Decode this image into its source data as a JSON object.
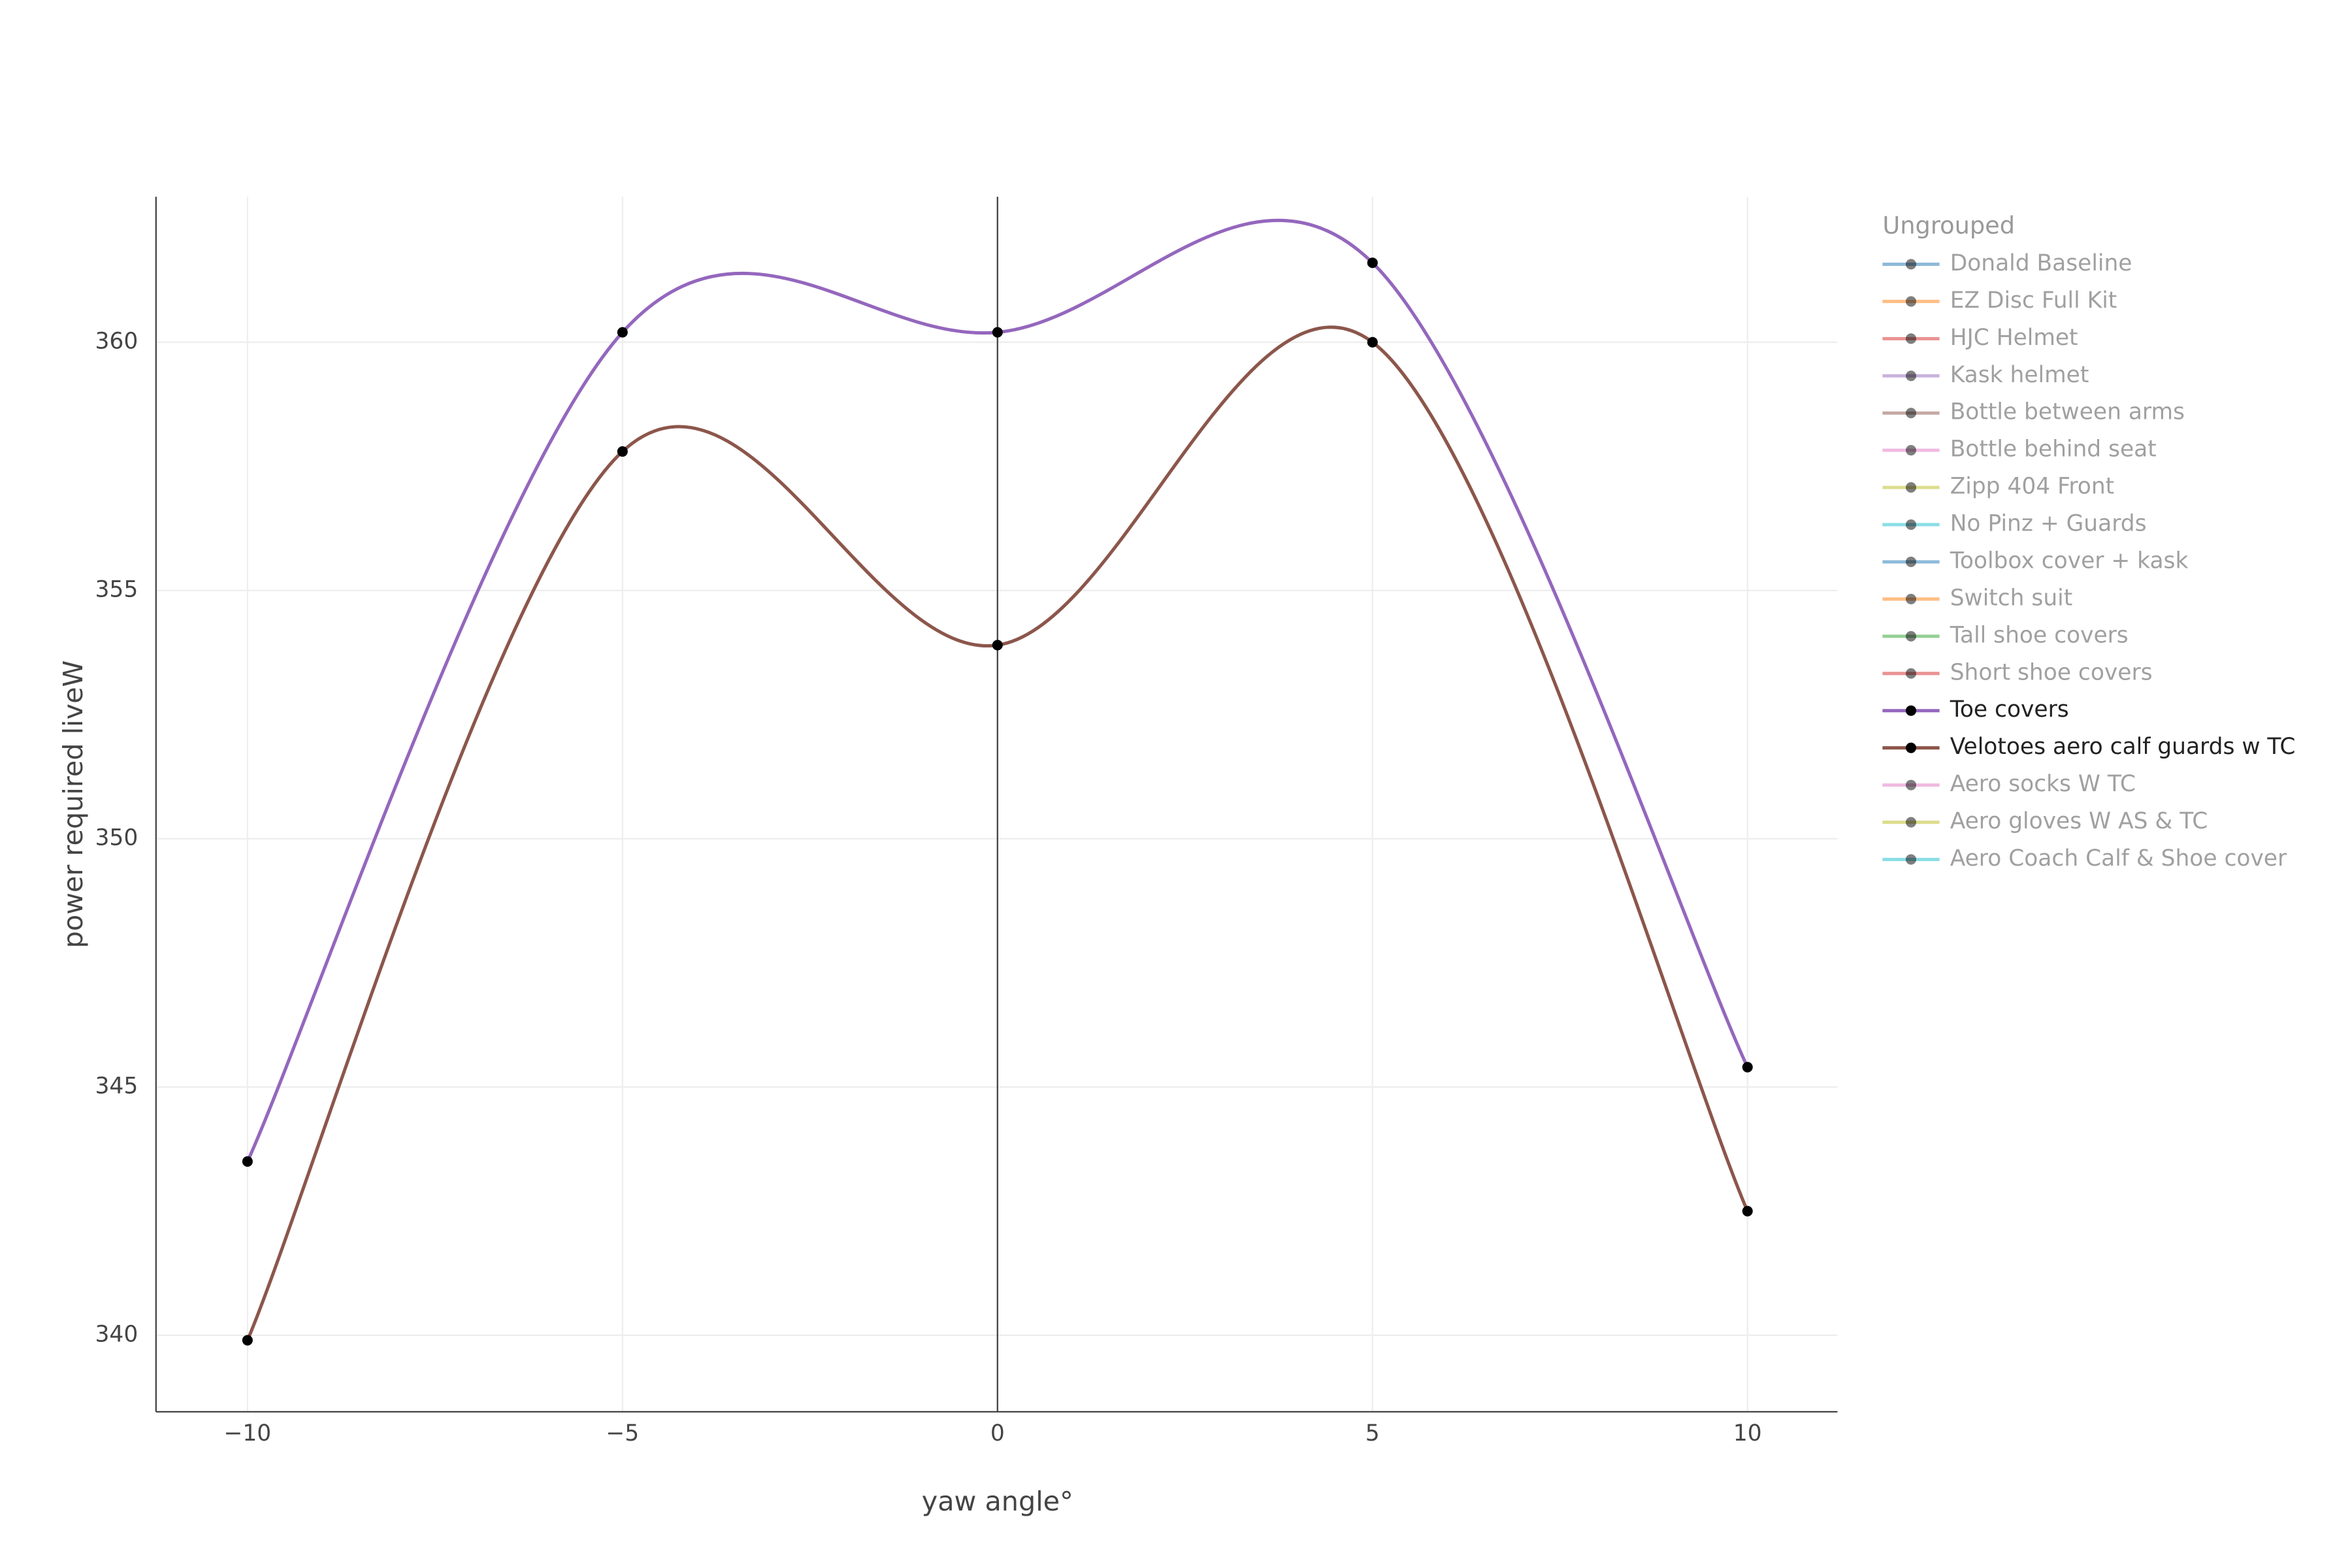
{
  "chart_data": {
    "type": "line",
    "line_shape": "spline",
    "marker_color": "#000000",
    "x_title": "yaw angle°",
    "y_title": "power required liveW",
    "legend_title": "Ungrouped",
    "x": [
      -10,
      -5,
      0,
      5,
      10
    ],
    "xlim": [
      -11.22,
      11.2
    ],
    "xticks": [
      {
        "value": -10,
        "label": "−10"
      },
      {
        "value": -5,
        "label": "−5"
      },
      0,
      5,
      10
    ],
    "ylim": [
      338.46,
      362.93
    ],
    "yticks": [
      340,
      345,
      350,
      355,
      360
    ],
    "grid": true,
    "zero_line_x": true,
    "legend_position": "right",
    "series": [
      {
        "name": "Donald Baseline",
        "color": "#1f77b4",
        "visible": "legendonly"
      },
      {
        "name": "EZ Disc Full Kit",
        "color": "#ff7f0e",
        "visible": "legendonly"
      },
      {
        "name": "HJC Helmet",
        "color": "#d62728",
        "visible": "legendonly"
      },
      {
        "name": "Kask helmet",
        "color": "#9467bd",
        "visible": "legendonly"
      },
      {
        "name": "Bottle between arms",
        "color": "#8c564b",
        "visible": "legendonly"
      },
      {
        "name": "Bottle behind seat",
        "color": "#e377c2",
        "visible": "legendonly"
      },
      {
        "name": "Zipp 404 Front",
        "color": "#bcbd22",
        "visible": "legendonly"
      },
      {
        "name": "No Pinz + Guards",
        "color": "#17becf",
        "visible": "legendonly"
      },
      {
        "name": "Toolbox cover + kask",
        "color": "#1f77b4",
        "visible": "legendonly"
      },
      {
        "name": "Switch suit",
        "color": "#ff7f0e",
        "visible": "legendonly"
      },
      {
        "name": "Tall shoe covers",
        "color": "#2ca02c",
        "visible": "legendonly"
      },
      {
        "name": "Short shoe covers",
        "color": "#d62728",
        "visible": "legendonly"
      },
      {
        "name": "Toe covers",
        "color": "#9467bd",
        "visible": true,
        "values": [
          343.5,
          360.2,
          360.2,
          361.6,
          345.4
        ]
      },
      {
        "name": "Velotoes aero calf guards w TC",
        "color": "#8c564b",
        "visible": true,
        "values": [
          339.9,
          357.8,
          353.9,
          360.0,
          342.5
        ]
      },
      {
        "name": "Aero socks W TC",
        "color": "#e377c2",
        "visible": "legendonly"
      },
      {
        "name": "Aero gloves W AS & TC",
        "color": "#bcbd22",
        "visible": "legendonly"
      },
      {
        "name": "Aero Coach Calf & Shoe cover",
        "color": "#17becf",
        "visible": "legendonly"
      }
    ]
  }
}
